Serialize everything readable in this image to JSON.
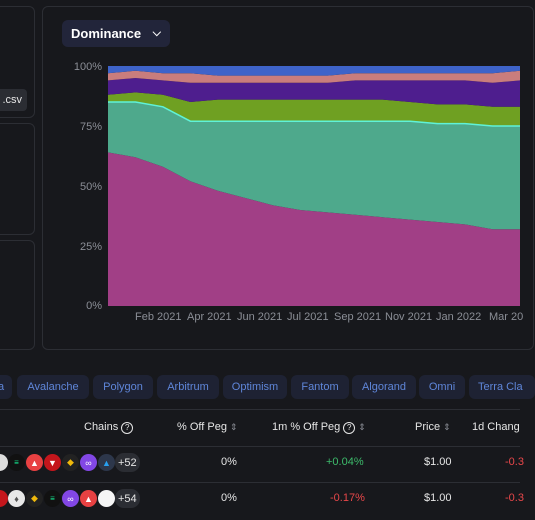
{
  "csv_button": {
    "label": ".csv"
  },
  "dominance_dropdown": {
    "label": "Dominance",
    "icon": "chevron-down-icon"
  },
  "chart_data": {
    "type": "area",
    "stacked": true,
    "normalized": true,
    "ylim": [
      0,
      100
    ],
    "y_ticks": [
      "0%",
      "25%",
      "50%",
      "75%",
      "100%"
    ],
    "x_ticks": [
      "Feb 2021",
      "Apr 2021",
      "Jun 2021",
      "Jul 2021",
      "Sep 2021",
      "Nov 2021",
      "Jan 2022",
      "Mar 20"
    ],
    "grid": false,
    "legend": "none",
    "series": [
      {
        "color": "#a13f86",
        "x": [
          "2021-01",
          "2021-02",
          "2021-03",
          "2021-04",
          "2021-05",
          "2021-06",
          "2021-07",
          "2021-08",
          "2021-09",
          "2021-10",
          "2021-11",
          "2021-12",
          "2022-01",
          "2022-02",
          "2022-03",
          "2022-04"
        ],
        "values": [
          64,
          62,
          58,
          52,
          48,
          45,
          42,
          40,
          39,
          38,
          37,
          36,
          35,
          34,
          32,
          32
        ]
      },
      {
        "color": "#4ea98c",
        "x": [
          "2021-01",
          "2021-02",
          "2021-03",
          "2021-04",
          "2021-05",
          "2021-06",
          "2021-07",
          "2021-08",
          "2021-09",
          "2021-10",
          "2021-11",
          "2021-12",
          "2022-01",
          "2022-02",
          "2022-03",
          "2022-04"
        ],
        "values": [
          21,
          23,
          25,
          25,
          29,
          32,
          35,
          37,
          38,
          39,
          40,
          41,
          41,
          42,
          43,
          43
        ]
      },
      {
        "color": "#6fa022",
        "x": [
          "2021-01",
          "2021-02",
          "2021-03",
          "2021-04",
          "2021-05",
          "2021-06",
          "2021-07",
          "2021-08",
          "2021-09",
          "2021-10",
          "2021-11",
          "2021-12",
          "2022-01",
          "2022-02",
          "2022-03",
          "2022-04"
        ],
        "values": [
          3,
          4,
          5,
          8,
          9,
          9,
          9,
          9,
          9,
          9,
          9,
          8,
          8,
          8,
          8,
          8
        ]
      },
      {
        "color": "#4e1e8e",
        "x": [
          "2021-01",
          "2021-02",
          "2021-03",
          "2021-04",
          "2021-05",
          "2021-06",
          "2021-07",
          "2021-08",
          "2021-09",
          "2021-10",
          "2021-11",
          "2021-12",
          "2022-01",
          "2022-02",
          "2022-03",
          "2022-04"
        ],
        "values": [
          6,
          6,
          6,
          8,
          7,
          7,
          7,
          7,
          7,
          8,
          8,
          9,
          10,
          10,
          10,
          11
        ]
      },
      {
        "color": "#c97d7d",
        "x": [
          "2021-01",
          "2021-02",
          "2021-03",
          "2021-04",
          "2021-05",
          "2021-06",
          "2021-07",
          "2021-08",
          "2021-09",
          "2021-10",
          "2021-11",
          "2021-12",
          "2022-01",
          "2022-02",
          "2022-03",
          "2022-04"
        ],
        "values": [
          3,
          3,
          3,
          4,
          3,
          3,
          3,
          3,
          3,
          3,
          3,
          3,
          3,
          3,
          4,
          4
        ]
      },
      {
        "color": "#3e63c9",
        "x": [
          "2021-01",
          "2021-02",
          "2021-03",
          "2021-04",
          "2021-05",
          "2021-06",
          "2021-07",
          "2021-08",
          "2021-09",
          "2021-10",
          "2021-11",
          "2021-12",
          "2022-01",
          "2022-02",
          "2022-03",
          "2022-04"
        ],
        "values": [
          3,
          2,
          3,
          3,
          4,
          4,
          4,
          4,
          4,
          3,
          3,
          3,
          3,
          3,
          3,
          2
        ]
      }
    ]
  },
  "chain_filters": [
    "a",
    "Avalanche",
    "Polygon",
    "Arbitrum",
    "Optimism",
    "Fantom",
    "Algorand",
    "Omni",
    "Terra Cla"
  ],
  "table": {
    "headers": {
      "chains": "Chains",
      "off_peg": "% Off Peg",
      "m1_off_peg": "1m % Off Peg",
      "price": "Price",
      "d1_change": "1d Chang"
    },
    "rows": [
      {
        "more_chains": "+52",
        "off_peg": "0%",
        "m1_off_peg": "+0.04%",
        "price": "$1.00",
        "d1_change": "-0.3"
      },
      {
        "more_chains": "+54",
        "off_peg": "0%",
        "m1_off_peg": "-0.17%",
        "price": "$1.00",
        "d1_change": "-0.3"
      }
    ]
  },
  "colors": {
    "background": "#17181c",
    "chip_text": "#5f86d9",
    "positive": "#3dbb6b",
    "negative": "#e8474a"
  }
}
